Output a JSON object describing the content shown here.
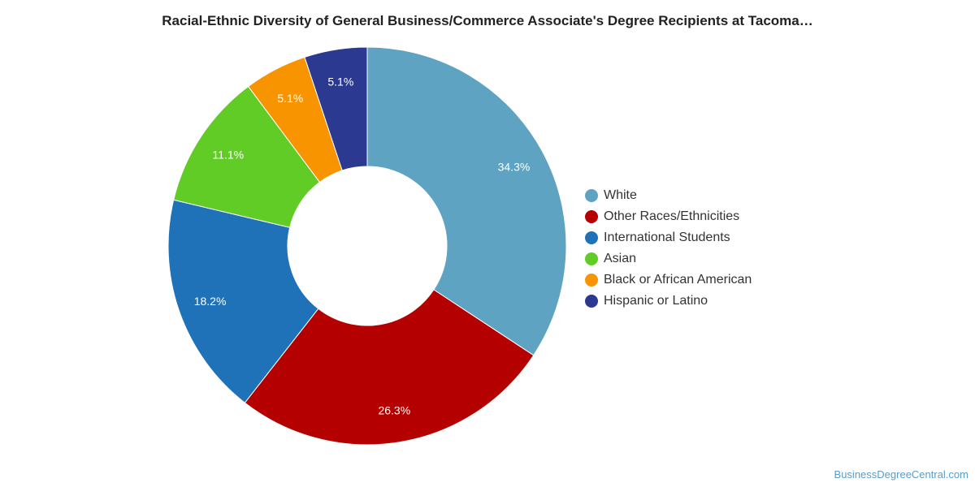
{
  "source": "BusinessDegreeCentral.com",
  "chart_data": {
    "type": "pie",
    "title": "Racial-Ethnic Diversity of General Business/Commerce Associate's Degree Recipients at Tacoma…",
    "donut": true,
    "legend_position": "right",
    "categories": [
      "White",
      "Other Races/Ethnicities",
      "International Students",
      "Asian",
      "Black or African American",
      "Hispanic or Latino"
    ],
    "values": [
      34.3,
      26.3,
      18.2,
      11.1,
      5.1,
      5.1
    ],
    "labels": [
      "34.3%",
      "26.3%",
      "18.2%",
      "11.1%",
      "5.1%",
      "5.1%"
    ],
    "colors": [
      "#5ea3c1",
      "#b50000",
      "#1f72b8",
      "#62cc27",
      "#f79400",
      "#2c3990"
    ]
  }
}
